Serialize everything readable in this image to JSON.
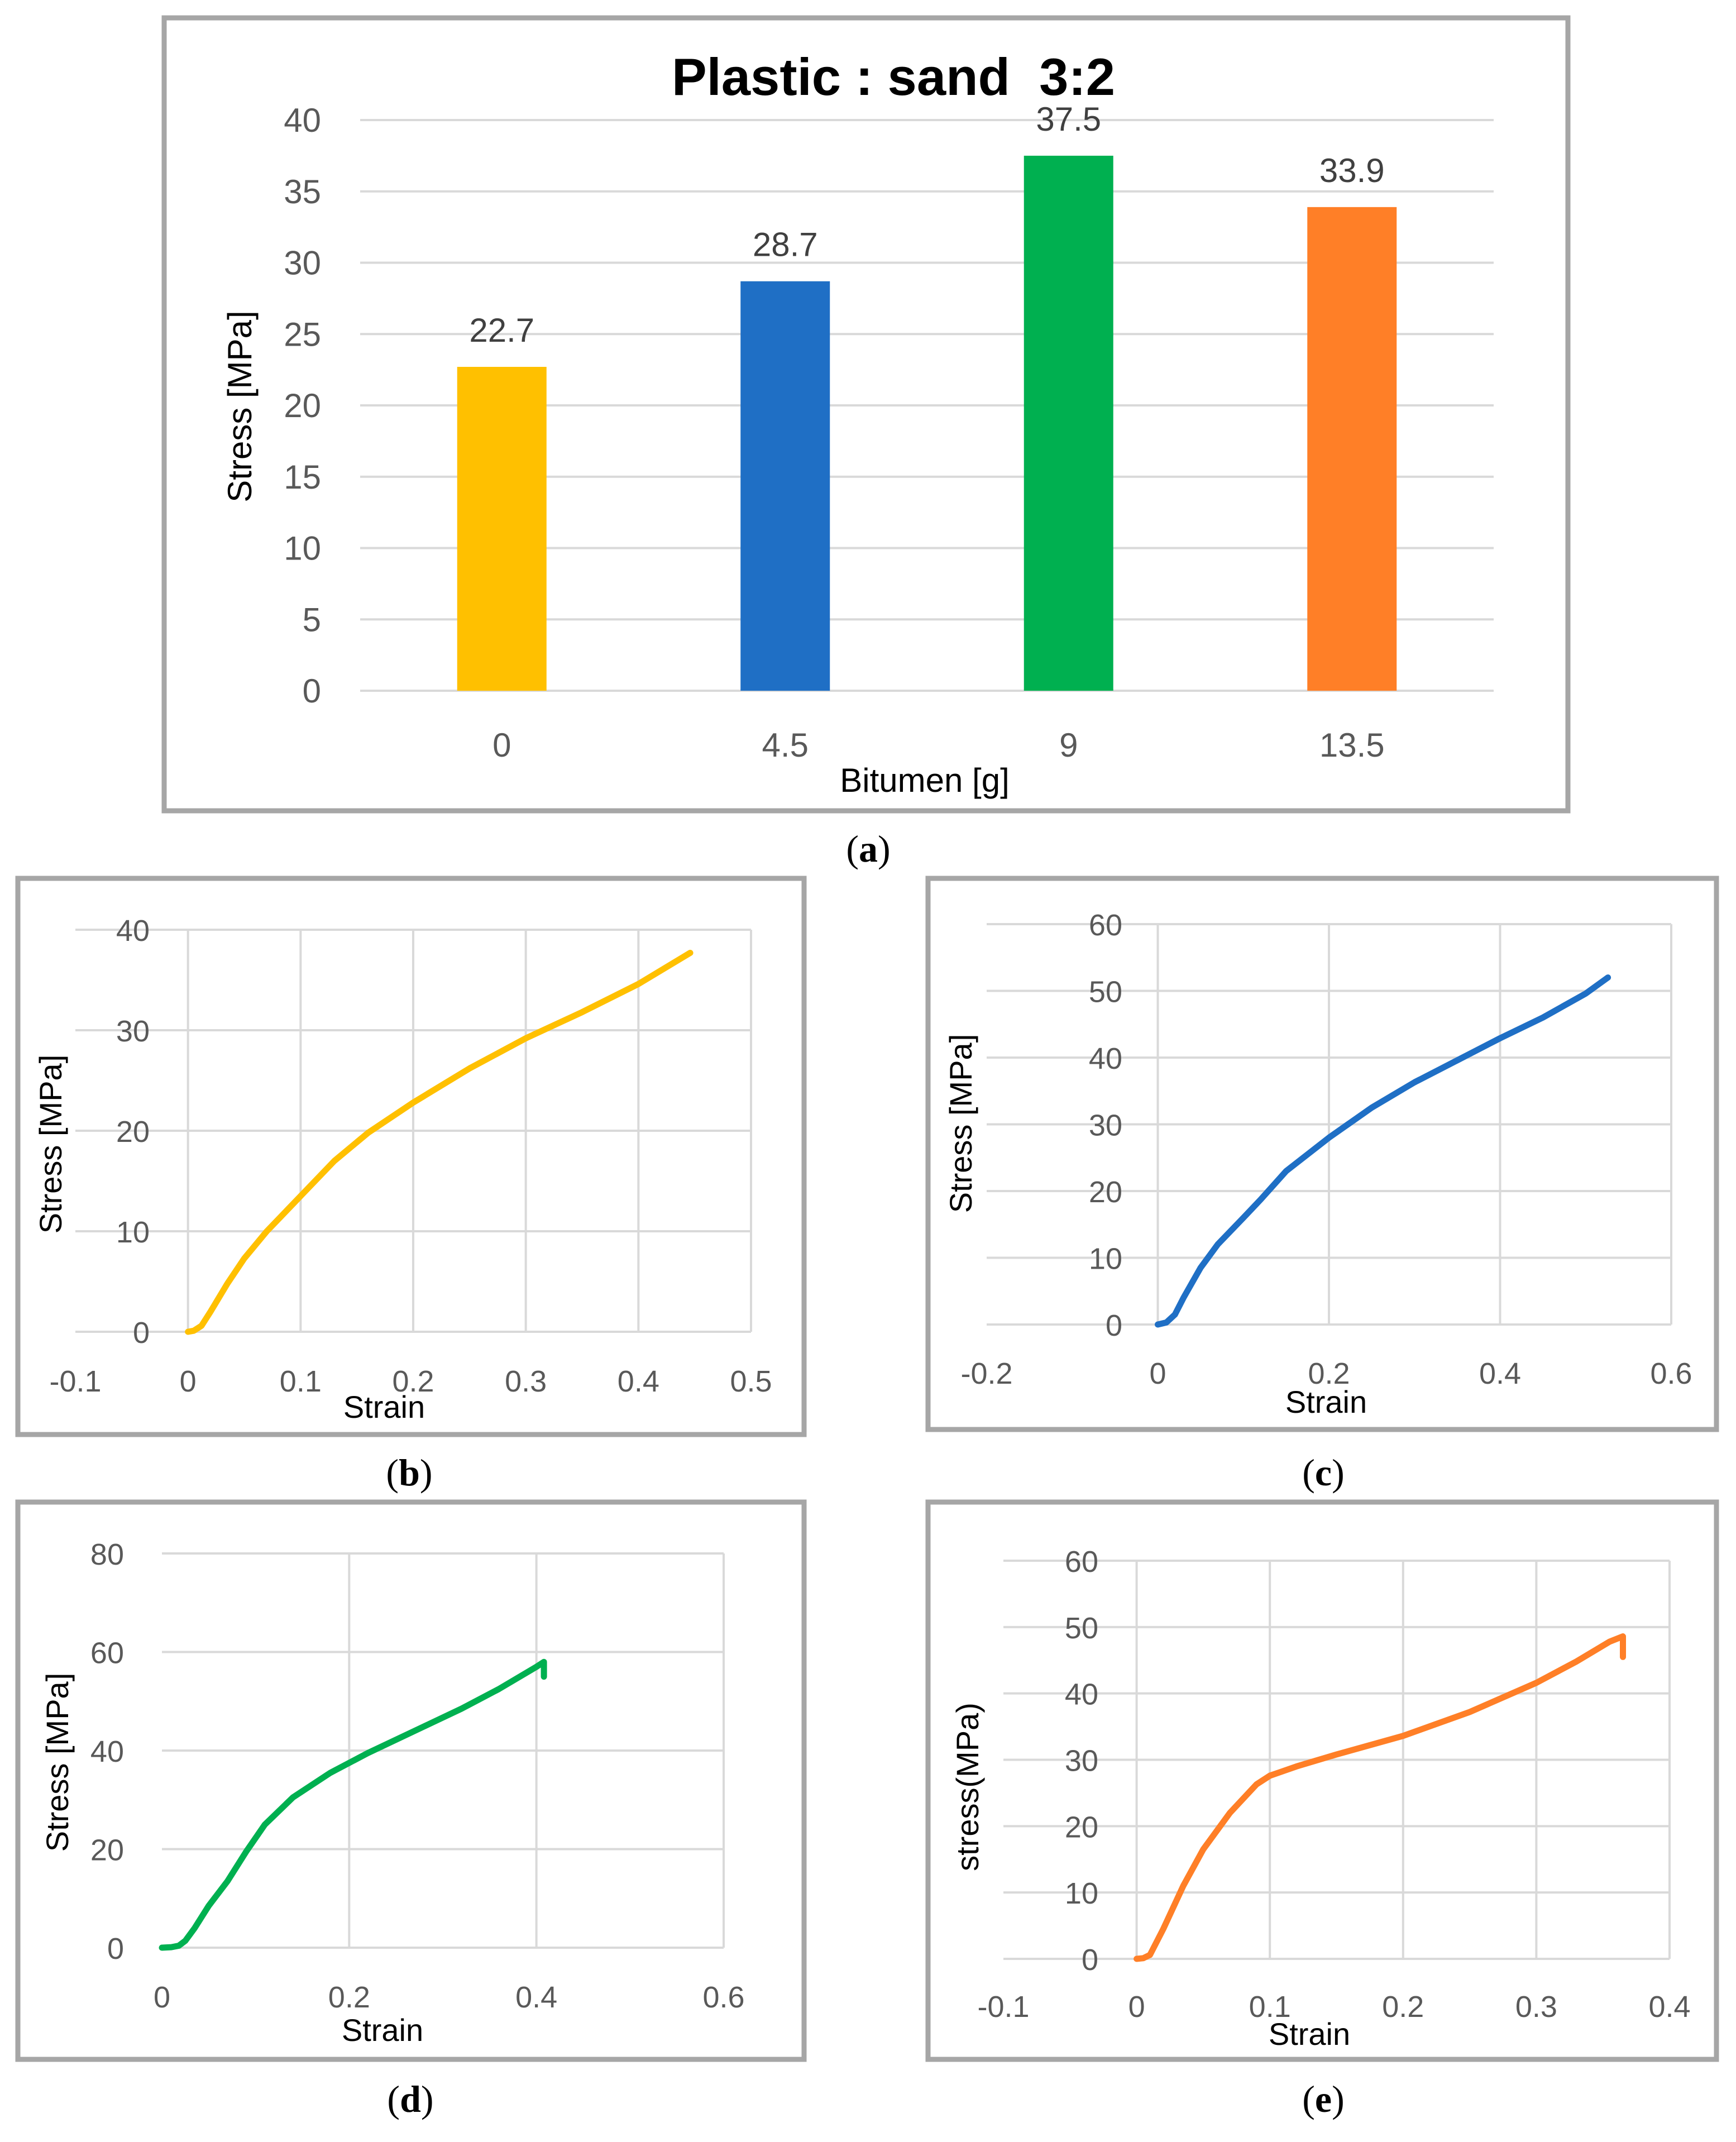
{
  "chart_data": [
    {
      "type": "bar",
      "panel": "a",
      "title": "Plastic : sand  3:2",
      "xlabel": "Bitumen [g]",
      "ylabel": "Stress [MPa]",
      "categories": [
        "0",
        "4.5",
        "9",
        "13.5"
      ],
      "values": [
        22.7,
        28.7,
        37.5,
        33.9
      ],
      "value_labels": [
        "22.7",
        "28.7",
        "37.5",
        "33.9"
      ],
      "colors": [
        "#FFC000",
        "#1F6FC5",
        "#00B050",
        "#FF7F27"
      ],
      "ylim": [
        0,
        40
      ],
      "yticks": [
        0,
        5,
        10,
        15,
        20,
        25,
        30,
        35,
        40
      ],
      "ytick_labels": [
        "0",
        "5",
        "10",
        "15",
        "20",
        "25",
        "30",
        "35",
        "40"
      ],
      "grid": true,
      "caption": "a"
    },
    {
      "type": "line",
      "panel": "b",
      "xlabel": "Strain",
      "ylabel": "Stress [MPa]",
      "xlim": [
        -0.1,
        0.5
      ],
      "ylim": [
        0,
        40
      ],
      "xticks": [
        -0.1,
        0,
        0.1,
        0.2,
        0.3,
        0.4,
        0.5
      ],
      "xtick_labels": [
        "-0.1",
        "0",
        "0.1",
        "0.2",
        "0.3",
        "0.4",
        "0.5"
      ],
      "yticks": [
        0,
        10,
        20,
        30,
        40
      ],
      "ytick_labels": [
        "0",
        "10",
        "20",
        "30",
        "40"
      ],
      "color": "#FFC000",
      "x": [
        0,
        0.005,
        0.012,
        0.02,
        0.035,
        0.05,
        0.07,
        0.1,
        0.13,
        0.16,
        0.2,
        0.25,
        0.3,
        0.35,
        0.4,
        0.446
      ],
      "y": [
        0,
        0.1,
        0.6,
        2.0,
        4.8,
        7.3,
        10.0,
        13.5,
        17.0,
        19.8,
        22.8,
        26.2,
        29.2,
        31.8,
        34.6,
        37.7
      ],
      "grid": true,
      "caption": "b"
    },
    {
      "type": "line",
      "panel": "c",
      "xlabel": "Strain",
      "ylabel": "Stress [MPa]",
      "xlim": [
        -0.2,
        0.6
      ],
      "ylim": [
        0,
        60
      ],
      "xticks": [
        -0.2,
        0,
        0.2,
        0.4,
        0.6
      ],
      "xtick_labels": [
        "-0.2",
        "0",
        "0.2",
        "0.4",
        "0.6"
      ],
      "yticks": [
        0,
        10,
        20,
        30,
        40,
        50,
        60
      ],
      "ytick_labels": [
        "0",
        "10",
        "20",
        "30",
        "40",
        "50",
        "60"
      ],
      "color": "#1F6FC5",
      "x": [
        0,
        0.01,
        0.02,
        0.03,
        0.05,
        0.07,
        0.1,
        0.12,
        0.15,
        0.2,
        0.25,
        0.3,
        0.35,
        0.4,
        0.45,
        0.5,
        0.526
      ],
      "y": [
        0,
        0.3,
        1.5,
        4.0,
        8.5,
        12.0,
        16.0,
        18.7,
        23.0,
        28.0,
        32.5,
        36.3,
        39.6,
        42.9,
        46.0,
        49.6,
        52.0
      ],
      "grid": true,
      "caption": "c"
    },
    {
      "type": "line",
      "panel": "d",
      "xlabel": "Strain",
      "ylabel": "Stress [MPa]",
      "xlim": [
        0,
        0.6
      ],
      "ylim": [
        0,
        80
      ],
      "xticks": [
        0,
        0.2,
        0.4,
        0.6
      ],
      "xtick_labels": [
        "0",
        "0.2",
        "0.4",
        "0.6"
      ],
      "yticks": [
        0,
        20,
        40,
        60,
        80
      ],
      "ytick_labels": [
        "0",
        "20",
        "40",
        "60",
        "80"
      ],
      "color": "#00B050",
      "x": [
        0,
        0.01,
        0.018,
        0.025,
        0.035,
        0.05,
        0.07,
        0.09,
        0.11,
        0.14,
        0.18,
        0.22,
        0.27,
        0.32,
        0.36,
        0.4,
        0.408,
        0.408
      ],
      "y": [
        0,
        0.1,
        0.4,
        1.4,
        4.0,
        8.5,
        13.5,
        19.5,
        25.0,
        30.5,
        35.5,
        39.5,
        44.0,
        48.5,
        52.5,
        57.0,
        58.0,
        55.0
      ],
      "grid": true,
      "caption": "d"
    },
    {
      "type": "line",
      "panel": "e",
      "xlabel": "Strain",
      "ylabel": "stress(MPa)",
      "xlim": [
        -0.1,
        0.4
      ],
      "ylim": [
        0,
        60
      ],
      "xticks": [
        -0.1,
        0,
        0.1,
        0.2,
        0.3,
        0.4
      ],
      "xtick_labels": [
        "-0.1",
        "0",
        "0.1",
        "0.2",
        "0.3",
        "0.4"
      ],
      "yticks": [
        0,
        10,
        20,
        30,
        40,
        50,
        60
      ],
      "ytick_labels": [
        "0",
        "10",
        "20",
        "30",
        "40",
        "50",
        "60"
      ],
      "color": "#FF7F27",
      "x": [
        0,
        0.005,
        0.01,
        0.02,
        0.035,
        0.05,
        0.07,
        0.09,
        0.1,
        0.12,
        0.15,
        0.2,
        0.25,
        0.3,
        0.33,
        0.355,
        0.365,
        0.365
      ],
      "y": [
        0,
        0.1,
        0.6,
        4.5,
        11.0,
        16.5,
        22.0,
        26.3,
        27.6,
        29.0,
        30.8,
        33.6,
        37.2,
        41.6,
        44.8,
        47.8,
        48.6,
        45.5
      ],
      "grid": true,
      "caption": "e"
    }
  ]
}
